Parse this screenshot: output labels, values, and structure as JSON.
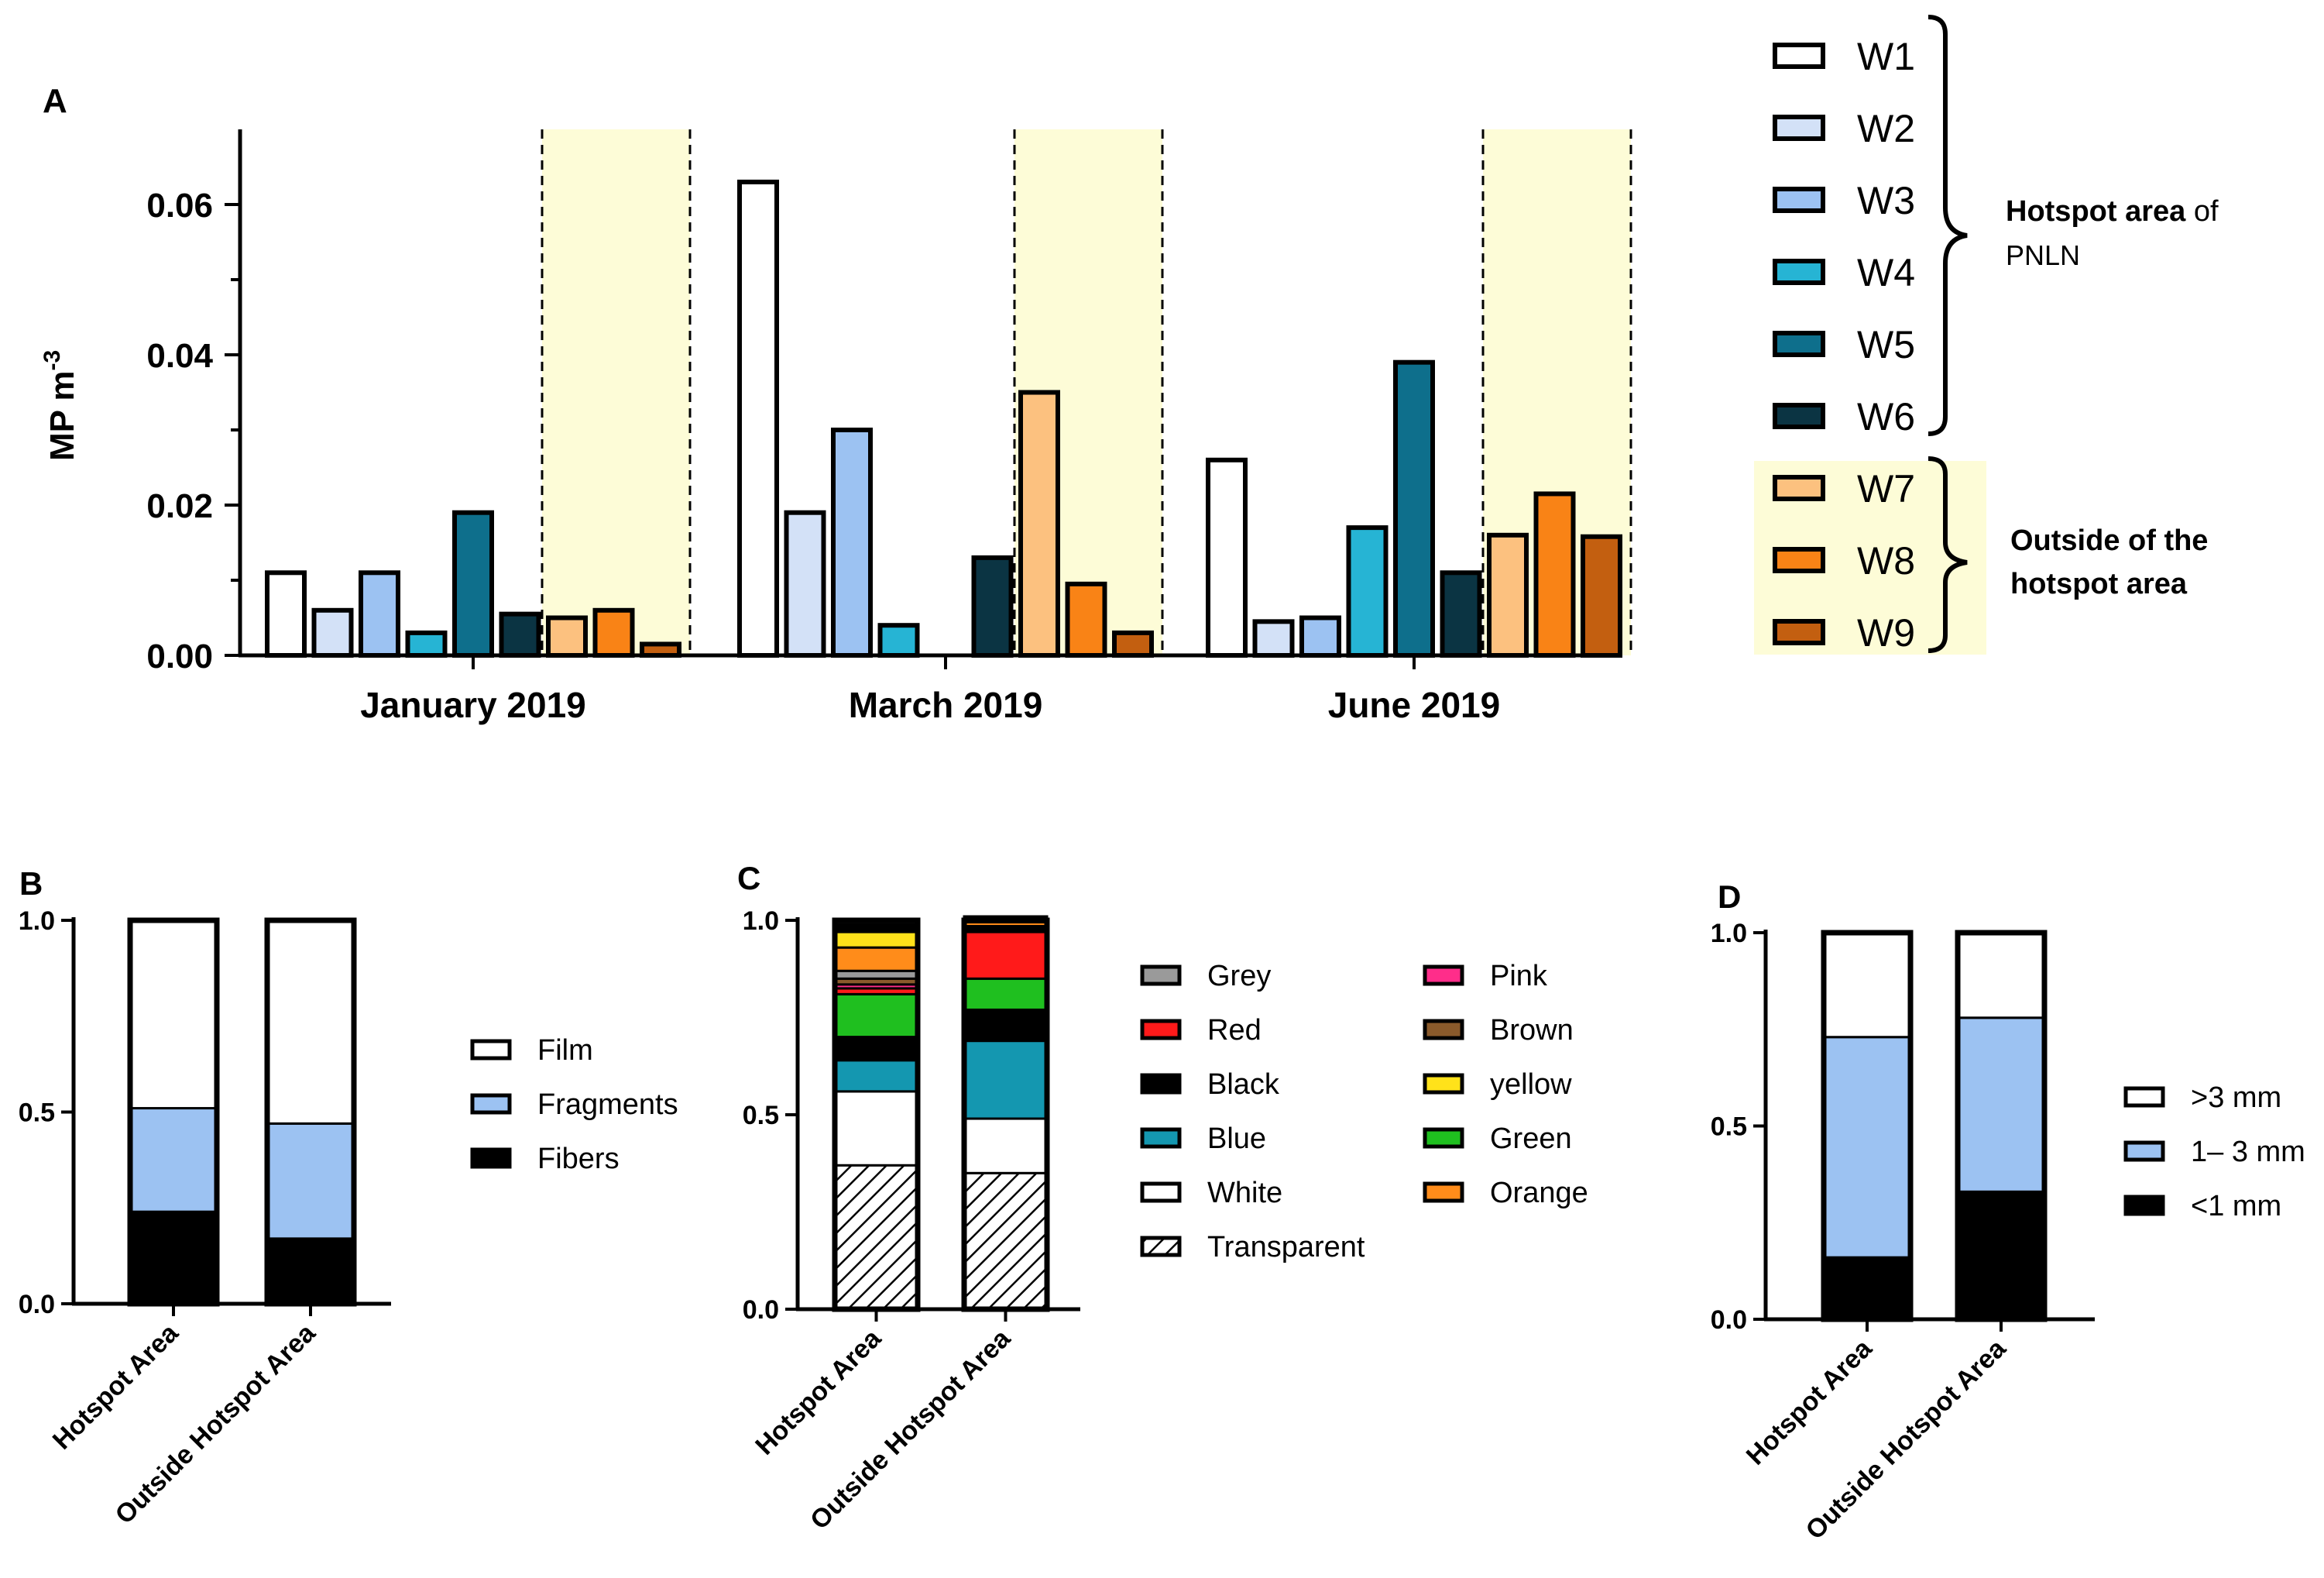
{
  "chart_data": [
    {
      "panel": "A",
      "type": "bar",
      "ylabel": "MP m",
      "ylabel_sup": "-3",
      "ylim": [
        0,
        0.07
      ],
      "yticks": [
        "0.00",
        "0.02",
        "0.04",
        "0.06"
      ],
      "categories": [
        "January 2019",
        "March 2019",
        "June 2019"
      ],
      "series": [
        {
          "name": "W1",
          "color": "#ffffff",
          "values": [
            0.011,
            0.063,
            0.026
          ]
        },
        {
          "name": "W2",
          "color": "#d3e1f7",
          "values": [
            0.006,
            0.019,
            0.0045
          ]
        },
        {
          "name": "W3",
          "color": "#9cc2f2",
          "values": [
            0.011,
            0.03,
            0.005
          ]
        },
        {
          "name": "W4",
          "color": "#26b4d4",
          "values": [
            0.003,
            0.004,
            0.017
          ]
        },
        {
          "name": "W5",
          "color": "#0e6f8c",
          "values": [
            0.019,
            null,
            0.039
          ]
        },
        {
          "name": "W6",
          "color": "#0b3443",
          "values": [
            0.0055,
            0.013,
            0.011
          ]
        },
        {
          "name": "W7",
          "color": "#fcc17f",
          "values": [
            0.005,
            0.035,
            0.016
          ]
        },
        {
          "name": "W8",
          "color": "#f98316",
          "values": [
            0.006,
            0.0095,
            0.0215
          ]
        },
        {
          "name": "W9",
          "color": "#c35f10",
          "values": [
            0.0015,
            0.003,
            0.0158
          ]
        }
      ],
      "groups": [
        {
          "label_bold": "Hotspot area",
          "label_rest": " of",
          "label_line2": "PNLN",
          "members": [
            "W1",
            "W2",
            "W3",
            "W4",
            "W5",
            "W6"
          ]
        },
        {
          "label_line1": "Outside of the",
          "label_line2": "hotspot area",
          "members": [
            "W7",
            "W8",
            "W9"
          ]
        }
      ],
      "highlight_color": "#fdfcd7",
      "title": "A"
    },
    {
      "panel": "B",
      "type": "bar",
      "stacked": true,
      "categories": [
        "Hotspot Area",
        "Outside Hotspot Area"
      ],
      "ylim": [
        0,
        1
      ],
      "yticks": [
        "0.0",
        "0.5",
        "1.0"
      ],
      "series": [
        {
          "name": "Fibers",
          "color": "#000000",
          "values": [
            0.24,
            0.17
          ]
        },
        {
          "name": "Fragments",
          "color": "#9cc2f2",
          "values": [
            0.27,
            0.3
          ]
        },
        {
          "name": "Film",
          "color": "#ffffff",
          "values": [
            0.49,
            0.53
          ]
        }
      ],
      "legend_order": [
        "Film",
        "Fragments",
        "Fibers"
      ],
      "title": "B"
    },
    {
      "panel": "C",
      "type": "bar",
      "stacked": true,
      "categories": [
        "Hotspot Area",
        "Outside Hotspot Area"
      ],
      "ylim": [
        0,
        1
      ],
      "yticks": [
        "0.0",
        "0.5",
        "1.0"
      ],
      "series": [
        {
          "name": "Transparent",
          "color": "#ffffff",
          "pattern": "hatch",
          "values": [
            0.37,
            0.35
          ]
        },
        {
          "name": "White",
          "color": "#ffffff",
          "values": [
            0.19,
            0.14
          ]
        },
        {
          "name": "Blue",
          "color": "#1497b0",
          "values": [
            0.08,
            0.2
          ]
        },
        {
          "name": "Black",
          "color": "#000000",
          "values": [
            0.06,
            0.08
          ]
        },
        {
          "name": "Green",
          "color": "#1fbf1f",
          "values": [
            0.11,
            0.08
          ]
        },
        {
          "name": "Red",
          "color": "#ff1a1a",
          "values": [
            0.015,
            0.12
          ]
        },
        {
          "name": "Pink",
          "color": "#ff2d8a",
          "values": [
            0.01,
            0.005
          ]
        },
        {
          "name": "Brown",
          "color": "#8a5a2b",
          "values": [
            0.015,
            0.005
          ]
        },
        {
          "name": "Grey",
          "color": "#9a9a9a",
          "values": [
            0.02,
            0.005
          ]
        },
        {
          "name": "Orange",
          "color": "#ff8c1a",
          "values": [
            0.06,
            0.01
          ]
        },
        {
          "name": "yellow",
          "color": "#ffe21a",
          "values": [
            0.04,
            0.005
          ]
        },
        {
          "name": "Black-top",
          "color": "#000000",
          "values": [
            0.02,
            0.01
          ]
        }
      ],
      "legend_col1": [
        "Grey",
        "Red",
        "Black",
        "Blue",
        "White",
        "Transparent"
      ],
      "legend_col2": [
        "Pink",
        "Brown",
        "yellow",
        "Green",
        "Orange"
      ],
      "title": "C"
    },
    {
      "panel": "D",
      "type": "bar",
      "stacked": true,
      "categories": [
        "Hotspot Area",
        "Outside Hotspot Area"
      ],
      "ylim": [
        0,
        1
      ],
      "yticks": [
        "0.0",
        "0.5",
        "1.0"
      ],
      "series": [
        {
          "name": "<1 mm",
          "color": "#000000",
          "values": [
            0.16,
            0.33
          ]
        },
        {
          "name": "1– 3 mm",
          "color": "#9cc2f2",
          "values": [
            0.57,
            0.45
          ]
        },
        {
          "name": ">3 mm",
          "color": "#ffffff",
          "values": [
            0.27,
            0.22
          ]
        }
      ],
      "legend_order": [
        ">3 mm",
        "1– 3 mm",
        "<1 mm"
      ],
      "title": "D"
    }
  ]
}
